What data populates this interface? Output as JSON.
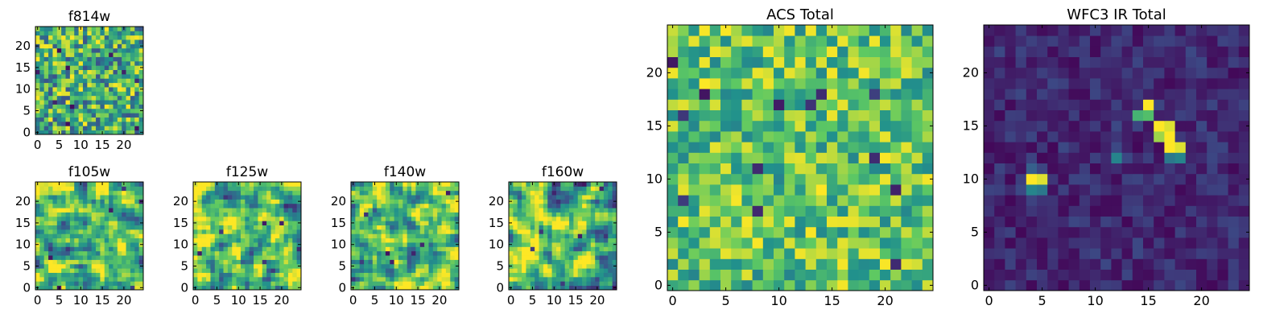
{
  "colors": {
    "viridis": [
      "#440154",
      "#3b528b",
      "#21918c",
      "#5ec962",
      "#fde725"
    ]
  },
  "chart_data": [
    {
      "type": "heatmap",
      "title": "f814w",
      "size": 25,
      "xticks": [
        0,
        5,
        10,
        15,
        20
      ],
      "yticks": [
        0,
        5,
        10,
        15,
        20
      ],
      "seed": 11,
      "profile": "noise"
    },
    {
      "type": "heatmap",
      "title": "f105w",
      "size": 25,
      "xticks": [
        0,
        5,
        10,
        15,
        20
      ],
      "yticks": [
        0,
        5,
        10,
        15,
        20
      ],
      "seed": 23,
      "profile": "smooth"
    },
    {
      "type": "heatmap",
      "title": "f125w",
      "size": 25,
      "xticks": [
        0,
        5,
        10,
        15,
        20
      ],
      "yticks": [
        0,
        5,
        10,
        15,
        20
      ],
      "seed": 37,
      "profile": "smooth"
    },
    {
      "type": "heatmap",
      "title": "f140w",
      "size": 25,
      "xticks": [
        0,
        5,
        10,
        15,
        20
      ],
      "yticks": [
        0,
        5,
        10,
        15,
        20
      ],
      "seed": 41,
      "profile": "smooth"
    },
    {
      "type": "heatmap",
      "title": "f160w",
      "size": 25,
      "xticks": [
        0,
        5,
        10,
        15,
        20
      ],
      "yticks": [
        0,
        5,
        10,
        15,
        20
      ],
      "seed": 53,
      "profile": "smooth"
    },
    {
      "type": "heatmap",
      "title": "ACS Total",
      "size": 25,
      "xticks": [
        0,
        5,
        10,
        15,
        20
      ],
      "yticks": [
        0,
        5,
        10,
        15,
        20
      ],
      "seed": 67,
      "profile": "bright"
    },
    {
      "type": "heatmap",
      "title": "WFC3 IR Total",
      "size": 25,
      "xticks": [
        0,
        5,
        10,
        15,
        20
      ],
      "yticks": [
        0,
        5,
        10,
        15,
        20
      ],
      "seed": 79,
      "profile": "dark",
      "bright_pixels": [
        {
          "x": 15,
          "y": 17,
          "v": 1.0
        },
        {
          "x": 14,
          "y": 16,
          "v": 0.65
        },
        {
          "x": 15,
          "y": 16,
          "v": 0.7
        },
        {
          "x": 16,
          "y": 15,
          "v": 1.0
        },
        {
          "x": 17,
          "y": 15,
          "v": 0.95
        },
        {
          "x": 16,
          "y": 14,
          "v": 0.85
        },
        {
          "x": 17,
          "y": 14,
          "v": 1.0
        },
        {
          "x": 17,
          "y": 13,
          "v": 1.0
        },
        {
          "x": 18,
          "y": 13,
          "v": 0.95
        },
        {
          "x": 17,
          "y": 12,
          "v": 0.4
        },
        {
          "x": 18,
          "y": 12,
          "v": 0.45
        },
        {
          "x": 12,
          "y": 12,
          "v": 0.45
        },
        {
          "x": 4,
          "y": 10,
          "v": 1.0
        },
        {
          "x": 5,
          "y": 10,
          "v": 0.95
        },
        {
          "x": 4,
          "y": 9,
          "v": 0.45
        },
        {
          "x": 5,
          "y": 9,
          "v": 0.4
        },
        {
          "x": 4,
          "y": 11,
          "v": 0.3
        }
      ]
    }
  ]
}
